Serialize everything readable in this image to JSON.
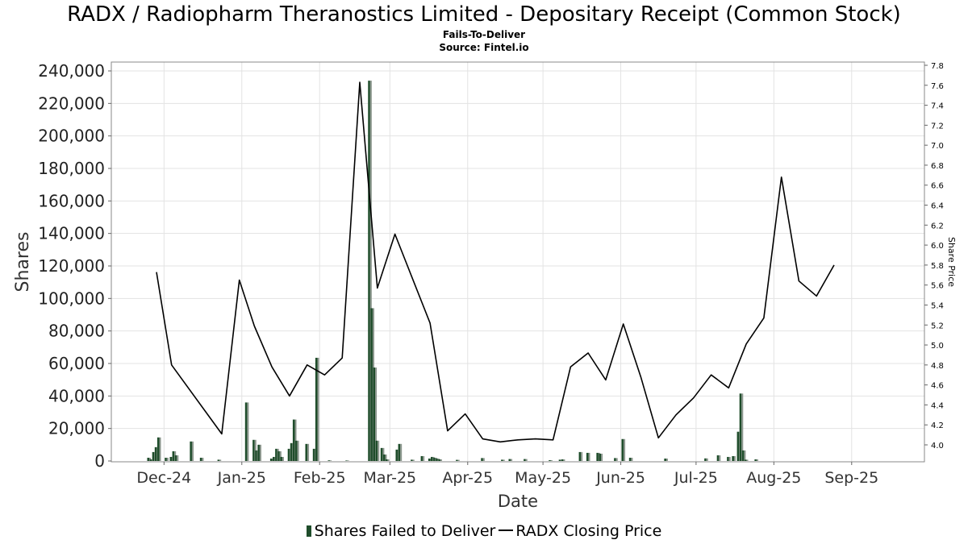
{
  "chart_data": {
    "type": "bar",
    "title": "RADX / Radiopharm Theranostics Limited - Depositary Receipt (Common Stock)",
    "subtitle": "Fails-To-Deliver",
    "source": "Source: Fintel.io",
    "xlabel": "Date",
    "ylabel": "Shares",
    "y2label": "Share Price",
    "ylim": [
      0,
      245000
    ],
    "y2lim": [
      3.85,
      7.8
    ],
    "x_range": [
      "2024-11-10",
      "2025-09-30"
    ],
    "grid": true,
    "yticks": [
      {
        "v": 0,
        "label": "0"
      },
      {
        "v": 20000,
        "label": "20,000"
      },
      {
        "v": 40000,
        "label": "40,000"
      },
      {
        "v": 60000,
        "label": "60,000"
      },
      {
        "v": 80000,
        "label": "80,000"
      },
      {
        "v": 100000,
        "label": "100,000"
      },
      {
        "v": 120000,
        "label": "120,000"
      },
      {
        "v": 140000,
        "label": "140,000"
      },
      {
        "v": 160000,
        "label": "160,000"
      },
      {
        "v": 180000,
        "label": "180,000"
      },
      {
        "v": 200000,
        "label": "200,000"
      },
      {
        "v": 220000,
        "label": "220,000"
      },
      {
        "v": 240000,
        "label": "240,000"
      }
    ],
    "y2ticks": [
      "4.0",
      "4.2",
      "4.4",
      "4.6",
      "4.8",
      "5.0",
      "5.2",
      "5.4",
      "5.6",
      "5.8",
      "6.0",
      "6.2",
      "6.4",
      "6.6",
      "6.8",
      "7.0",
      "7.2",
      "7.4",
      "7.6",
      "7.8"
    ],
    "xticks": [
      {
        "date": "2024-12-01",
        "label": "Dec-24"
      },
      {
        "date": "2025-01-01",
        "label": "Jan-25"
      },
      {
        "date": "2025-02-01",
        "label": "Feb-25"
      },
      {
        "date": "2025-03-01",
        "label": "Mar-25"
      },
      {
        "date": "2025-04-01",
        "label": "Apr-25"
      },
      {
        "date": "2025-05-01",
        "label": "May-25"
      },
      {
        "date": "2025-06-01",
        "label": "Jun-25"
      },
      {
        "date": "2025-07-01",
        "label": "Jul-25"
      },
      {
        "date": "2025-08-01",
        "label": "Aug-25"
      },
      {
        "date": "2025-09-01",
        "label": "Sep-25"
      }
    ],
    "series": [
      {
        "name": "Shares Failed to Deliver",
        "type": "bar",
        "color": "#1f4d2b",
        "points": [
          {
            "date": "2024-11-25",
            "value": 2000
          },
          {
            "date": "2024-11-26",
            "value": 1000
          },
          {
            "date": "2024-11-27",
            "value": 5500
          },
          {
            "date": "2024-11-28",
            "value": 8500
          },
          {
            "date": "2024-11-29",
            "value": 14500
          },
          {
            "date": "2024-12-02",
            "value": 2000
          },
          {
            "date": "2024-12-04",
            "value": 2500
          },
          {
            "date": "2024-12-05",
            "value": 6000
          },
          {
            "date": "2024-12-06",
            "value": 3500
          },
          {
            "date": "2024-12-12",
            "value": 12000
          },
          {
            "date": "2024-12-16",
            "value": 2000
          },
          {
            "date": "2024-12-23",
            "value": 800
          },
          {
            "date": "2025-01-03",
            "value": 36000
          },
          {
            "date": "2025-01-06",
            "value": 13000
          },
          {
            "date": "2025-01-07",
            "value": 6500
          },
          {
            "date": "2025-01-08",
            "value": 10000
          },
          {
            "date": "2025-01-13",
            "value": 1500
          },
          {
            "date": "2025-01-14",
            "value": 2500
          },
          {
            "date": "2025-01-15",
            "value": 7500
          },
          {
            "date": "2025-01-16",
            "value": 6000
          },
          {
            "date": "2025-01-17",
            "value": 2500
          },
          {
            "date": "2025-01-20",
            "value": 7500
          },
          {
            "date": "2025-01-21",
            "value": 11000
          },
          {
            "date": "2025-01-22",
            "value": 25500
          },
          {
            "date": "2025-01-23",
            "value": 12500
          },
          {
            "date": "2025-01-27",
            "value": 10500
          },
          {
            "date": "2025-01-30",
            "value": 7500
          },
          {
            "date": "2025-01-31",
            "value": 63500
          },
          {
            "date": "2025-02-05",
            "value": 400
          },
          {
            "date": "2025-02-12",
            "value": 300
          },
          {
            "date": "2025-02-21",
            "value": 234000
          },
          {
            "date": "2025-02-22",
            "value": 94000
          },
          {
            "date": "2025-02-23",
            "value": 57500
          },
          {
            "date": "2025-02-24",
            "value": 12500
          },
          {
            "date": "2025-02-26",
            "value": 8000
          },
          {
            "date": "2025-02-27",
            "value": 4000
          },
          {
            "date": "2025-02-28",
            "value": 1000
          },
          {
            "date": "2025-03-04",
            "value": 7000
          },
          {
            "date": "2025-03-05",
            "value": 10500
          },
          {
            "date": "2025-03-10",
            "value": 800
          },
          {
            "date": "2025-03-14",
            "value": 3000
          },
          {
            "date": "2025-03-17",
            "value": 1500
          },
          {
            "date": "2025-03-18",
            "value": 2500
          },
          {
            "date": "2025-03-19",
            "value": 2000
          },
          {
            "date": "2025-03-20",
            "value": 1500
          },
          {
            "date": "2025-03-21",
            "value": 1000
          },
          {
            "date": "2025-03-28",
            "value": 700
          },
          {
            "date": "2025-04-07",
            "value": 1800
          },
          {
            "date": "2025-04-15",
            "value": 800
          },
          {
            "date": "2025-04-18",
            "value": 1200
          },
          {
            "date": "2025-04-24",
            "value": 1200
          },
          {
            "date": "2025-05-04",
            "value": 500
          },
          {
            "date": "2025-05-08",
            "value": 800
          },
          {
            "date": "2025-05-09",
            "value": 1000
          },
          {
            "date": "2025-05-16",
            "value": 5500
          },
          {
            "date": "2025-05-19",
            "value": 5000
          },
          {
            "date": "2025-05-23",
            "value": 5000
          },
          {
            "date": "2025-05-24",
            "value": 4500
          },
          {
            "date": "2025-05-30",
            "value": 1800
          },
          {
            "date": "2025-06-02",
            "value": 13500
          },
          {
            "date": "2025-06-05",
            "value": 2000
          },
          {
            "date": "2025-06-19",
            "value": 1500
          },
          {
            "date": "2025-07-05",
            "value": 1600
          },
          {
            "date": "2025-07-10",
            "value": 3500
          },
          {
            "date": "2025-07-14",
            "value": 2500
          },
          {
            "date": "2025-07-16",
            "value": 3000
          },
          {
            "date": "2025-07-18",
            "value": 18000
          },
          {
            "date": "2025-07-19",
            "value": 41500
          },
          {
            "date": "2025-07-20",
            "value": 6500
          },
          {
            "date": "2025-07-21",
            "value": 800
          },
          {
            "date": "2025-07-25",
            "value": 1000
          }
        ]
      },
      {
        "name": "RADX Closing Price",
        "type": "line",
        "color": "#000000",
        "axis": "right",
        "points": [
          {
            "date": "2024-11-28",
            "value": 5.73
          },
          {
            "date": "2024-12-04",
            "value": 4.8
          },
          {
            "date": "2024-12-24",
            "value": 4.11
          },
          {
            "date": "2024-12-31",
            "value": 5.65
          },
          {
            "date": "2025-01-06",
            "value": 5.19
          },
          {
            "date": "2025-01-13",
            "value": 4.78
          },
          {
            "date": "2025-01-20",
            "value": 4.49
          },
          {
            "date": "2025-01-27",
            "value": 4.8
          },
          {
            "date": "2025-02-03",
            "value": 4.7
          },
          {
            "date": "2025-02-10",
            "value": 4.87
          },
          {
            "date": "2025-02-17",
            "value": 7.63
          },
          {
            "date": "2025-02-24",
            "value": 5.57
          },
          {
            "date": "2025-03-03",
            "value": 6.11
          },
          {
            "date": "2025-03-17",
            "value": 5.22
          },
          {
            "date": "2025-03-24",
            "value": 4.14
          },
          {
            "date": "2025-03-31",
            "value": 4.31
          },
          {
            "date": "2025-04-07",
            "value": 4.06
          },
          {
            "date": "2025-04-14",
            "value": 4.03
          },
          {
            "date": "2025-04-21",
            "value": 4.05
          },
          {
            "date": "2025-04-28",
            "value": 4.06
          },
          {
            "date": "2025-05-05",
            "value": 4.05
          },
          {
            "date": "2025-05-12",
            "value": 4.78
          },
          {
            "date": "2025-05-19",
            "value": 4.92
          },
          {
            "date": "2025-05-26",
            "value": 4.65
          },
          {
            "date": "2025-06-02",
            "value": 5.21
          },
          {
            "date": "2025-06-09",
            "value": 4.68
          },
          {
            "date": "2025-06-16",
            "value": 4.07
          },
          {
            "date": "2025-06-23",
            "value": 4.3
          },
          {
            "date": "2025-06-30",
            "value": 4.47
          },
          {
            "date": "2025-07-07",
            "value": 4.7
          },
          {
            "date": "2025-07-14",
            "value": 4.57
          },
          {
            "date": "2025-07-21",
            "value": 5.01
          },
          {
            "date": "2025-07-28",
            "value": 5.27
          },
          {
            "date": "2025-08-04",
            "value": 6.68
          },
          {
            "date": "2025-08-11",
            "value": 5.64
          },
          {
            "date": "2025-08-18",
            "value": 5.49
          },
          {
            "date": "2025-08-25",
            "value": 5.8
          }
        ]
      }
    ],
    "legend": "bottom"
  }
}
